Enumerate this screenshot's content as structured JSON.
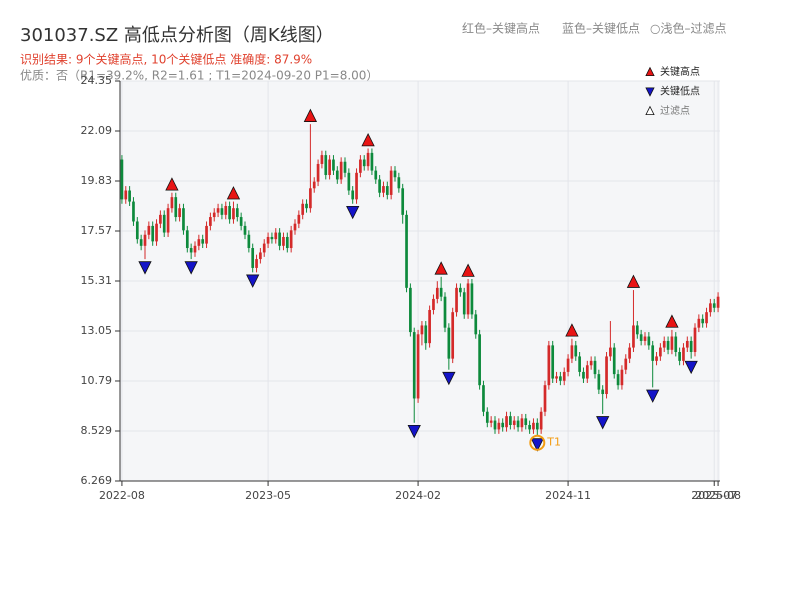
{
  "chart_data": {
    "type": "candlestick",
    "title": "301037.SZ 高低点分析图（周K线图）",
    "subtitle": "识别结果: 9个关键高点, 10个关键低点  准确度: 87.9%",
    "note": "优质：否（R1=39.2%, R2=1.61 ; T1=2024-09-20 P1=8.00）",
    "header_legend": [
      "红色–关键高点",
      "蓝色–关键低点",
      "○浅色–过滤点"
    ],
    "up_color": "#d42a2a",
    "down_color": "#0d8a3c",
    "ylim": [
      6.269,
      24.35
    ],
    "yticks": [
      6.269,
      8.529,
      10.79,
      13.05,
      15.31,
      17.57,
      19.83,
      22.09,
      24.35
    ],
    "grid": true,
    "legend_position": "upper right",
    "categories": [
      "2022-08",
      null,
      null,
      null,
      null,
      null,
      null,
      null,
      null,
      null,
      null,
      null,
      null,
      null,
      null,
      null,
      null,
      null,
      null,
      null,
      null,
      null,
      null,
      null,
      null,
      null,
      null,
      null,
      null,
      null,
      null,
      null,
      null,
      null,
      null,
      null,
      null,
      null,
      "2023-05",
      null,
      null,
      null,
      null,
      null,
      null,
      null,
      null,
      null,
      null,
      null,
      null,
      null,
      null,
      null,
      null,
      null,
      null,
      null,
      null,
      null,
      null,
      null,
      null,
      null,
      null,
      null,
      null,
      null,
      null,
      null,
      null,
      null,
      null,
      null,
      null,
      null,
      null,
      "2024-02",
      null,
      null,
      null,
      null,
      null,
      null,
      null,
      null,
      null,
      null,
      null,
      null,
      null,
      null,
      null,
      null,
      null,
      null,
      null,
      null,
      null,
      null,
      null,
      null,
      null,
      null,
      null,
      null,
      null,
      null,
      null,
      null,
      null,
      null,
      null,
      null,
      null,
      null,
      "2024-11",
      null,
      null,
      null,
      null,
      null,
      null,
      null,
      null,
      null,
      null,
      null,
      null,
      null,
      null,
      null,
      null,
      null,
      null,
      null,
      null,
      null,
      null,
      null,
      null,
      null,
      null,
      null,
      null,
      null,
      null,
      null,
      null,
      null,
      null,
      null,
      null,
      null,
      "2025-07",
      "2025-08"
    ],
    "open": [
      20.8,
      19.0,
      19.4,
      18.9,
      18.0,
      17.2,
      16.9,
      17.4,
      17.8,
      17.1,
      17.9,
      18.3,
      17.5,
      18.6,
      19.1,
      18.2,
      18.6,
      17.6,
      16.8,
      16.6,
      16.9,
      17.2,
      17.0,
      17.8,
      18.2,
      18.4,
      18.6,
      18.3,
      18.7,
      18.1,
      18.6,
      18.2,
      17.8,
      17.4,
      16.8,
      15.9,
      16.3,
      16.6,
      17.0,
      17.3,
      17.2,
      17.5,
      16.9,
      17.3,
      16.8,
      17.6,
      17.9,
      18.3,
      18.8,
      18.6,
      19.5,
      19.8,
      20.6,
      21.0,
      20.1,
      20.8,
      20.3,
      19.9,
      20.7,
      20.2,
      19.4,
      19.0,
      20.2,
      20.8,
      20.5,
      21.1,
      20.3,
      19.9,
      19.3,
      19.6,
      19.2,
      20.3,
      20.0,
      19.5,
      18.3,
      15.0,
      13.0,
      10.0,
      12.9,
      13.3,
      12.5,
      14.0,
      14.5,
      15.0,
      14.6,
      13.2,
      11.8,
      13.9,
      15.0,
      14.8,
      13.8,
      15.2,
      13.8,
      12.9,
      10.6,
      9.4,
      8.9,
      9.0,
      8.6,
      8.9,
      8.7,
      9.2,
      8.8,
      9.0,
      8.7,
      9.1,
      8.8,
      8.6,
      8.9,
      8.6,
      9.4,
      10.6,
      12.4,
      10.9,
      11.0,
      10.8,
      11.2,
      11.8,
      12.4,
      11.9,
      11.2,
      10.9,
      11.5,
      11.7,
      11.1,
      10.4,
      10.2,
      11.9,
      12.3,
      11.1,
      10.6,
      11.3,
      11.8,
      12.3,
      13.3,
      12.9,
      12.6,
      12.8,
      12.4,
      11.7,
      11.9,
      12.3,
      12.6,
      12.2,
      12.8,
      12.1,
      11.7,
      12.3,
      12.6,
      12.1,
      13.2,
      13.6,
      13.4,
      13.9,
      14.3,
      14.1
    ],
    "high": [
      21.0,
      19.6,
      19.6,
      19.1,
      18.2,
      17.4,
      17.6,
      18.0,
      18.0,
      18.1,
      18.5,
      18.5,
      18.8,
      19.3,
      19.3,
      18.8,
      18.8,
      17.8,
      17.0,
      17.1,
      17.4,
      17.4,
      18.0,
      18.4,
      18.6,
      18.8,
      18.8,
      18.9,
      18.9,
      18.9,
      18.8,
      18.4,
      18.0,
      17.6,
      17.0,
      16.5,
      16.8,
      17.2,
      17.5,
      17.5,
      17.7,
      17.7,
      17.5,
      17.5,
      17.8,
      18.1,
      18.5,
      19.0,
      19.0,
      22.4,
      20.0,
      20.8,
      21.2,
      21.2,
      21.0,
      21.0,
      20.5,
      20.9,
      20.9,
      20.4,
      19.6,
      20.4,
      21.0,
      21.0,
      21.3,
      21.3,
      20.5,
      20.1,
      19.8,
      19.8,
      20.5,
      20.5,
      20.2,
      19.7,
      18.5,
      15.2,
      13.2,
      13.1,
      13.5,
      13.5,
      14.2,
      14.7,
      15.3,
      15.5,
      14.8,
      13.4,
      14.1,
      15.2,
      15.2,
      15.0,
      15.4,
      15.4,
      14.0,
      13.1,
      10.8,
      9.6,
      9.2,
      9.2,
      9.1,
      9.1,
      9.4,
      9.4,
      9.2,
      9.2,
      9.3,
      9.3,
      9.0,
      9.1,
      9.1,
      9.6,
      10.8,
      12.6,
      12.6,
      11.2,
      11.2,
      11.4,
      12.0,
      12.7,
      12.6,
      12.1,
      11.4,
      11.7,
      11.9,
      11.9,
      11.3,
      10.6,
      12.1,
      13.5,
      12.5,
      11.3,
      11.5,
      12.0,
      12.5,
      14.9,
      13.5,
      13.1,
      13.0,
      13.0,
      12.6,
      12.1,
      12.5,
      12.8,
      12.8,
      13.1,
      13.0,
      12.3,
      12.5,
      12.8,
      12.8,
      13.4,
      13.8,
      13.8,
      14.1,
      14.5,
      14.5,
      14.8
    ],
    "low": [
      18.8,
      18.8,
      18.7,
      17.8,
      17.0,
      16.7,
      16.3,
      17.2,
      16.9,
      16.9,
      17.7,
      17.3,
      17.3,
      18.4,
      18.0,
      18.0,
      17.4,
      16.6,
      16.3,
      16.4,
      16.7,
      16.8,
      16.8,
      17.6,
      18.0,
      18.2,
      18.1,
      18.1,
      17.9,
      17.9,
      18.0,
      17.6,
      17.2,
      16.6,
      15.7,
      15.7,
      16.1,
      16.4,
      16.8,
      17.0,
      17.0,
      16.7,
      16.7,
      16.6,
      16.6,
      17.4,
      17.7,
      18.1,
      18.4,
      18.4,
      19.3,
      19.6,
      20.4,
      19.9,
      19.9,
      20.1,
      19.7,
      19.7,
      20.0,
      19.2,
      18.8,
      18.8,
      20.0,
      20.3,
      20.3,
      20.1,
      19.7,
      19.1,
      19.1,
      19.0,
      19.0,
      19.8,
      19.3,
      17.9,
      14.8,
      12.8,
      8.9,
      9.8,
      12.4,
      12.2,
      12.3,
      13.8,
      14.3,
      14.4,
      13.0,
      11.3,
      11.6,
      13.7,
      14.6,
      13.6,
      13.6,
      13.6,
      12.7,
      10.4,
      9.2,
      8.7,
      8.7,
      8.4,
      8.4,
      8.5,
      8.5,
      8.6,
      8.6,
      8.5,
      8.5,
      8.6,
      8.4,
      8.4,
      8.3,
      8.4,
      9.2,
      10.4,
      10.7,
      10.7,
      10.6,
      10.6,
      11.0,
      11.6,
      11.7,
      11.0,
      10.7,
      10.7,
      11.3,
      10.9,
      10.2,
      9.3,
      10.0,
      11.7,
      10.9,
      10.4,
      10.4,
      11.1,
      11.6,
      12.1,
      12.7,
      12.4,
      12.4,
      12.2,
      10.5,
      11.5,
      11.7,
      12.1,
      12.0,
      12.0,
      11.9,
      11.5,
      11.5,
      12.1,
      11.8,
      11.9,
      13.0,
      13.2,
      13.2,
      13.7,
      13.9,
      13.9
    ],
    "close": [
      19.0,
      19.4,
      18.9,
      18.0,
      17.2,
      16.9,
      17.4,
      17.8,
      17.1,
      17.9,
      18.3,
      17.5,
      18.6,
      19.1,
      18.2,
      18.6,
      17.6,
      16.8,
      16.6,
      16.9,
      17.2,
      17.0,
      17.8,
      18.2,
      18.4,
      18.6,
      18.3,
      18.7,
      18.1,
      18.6,
      18.2,
      17.8,
      17.4,
      16.8,
      15.9,
      16.3,
      16.6,
      17.0,
      17.3,
      17.2,
      17.5,
      16.9,
      17.3,
      16.8,
      17.6,
      17.9,
      18.3,
      18.8,
      18.6,
      19.5,
      19.8,
      20.6,
      21.0,
      20.1,
      20.8,
      20.3,
      19.9,
      20.7,
      20.2,
      19.4,
      19.0,
      20.2,
      20.8,
      20.5,
      21.1,
      20.3,
      19.9,
      19.3,
      19.6,
      19.2,
      20.3,
      20.0,
      19.5,
      18.3,
      15.0,
      13.0,
      10.0,
      12.9,
      13.3,
      12.5,
      14.0,
      14.5,
      15.0,
      14.6,
      13.2,
      11.8,
      13.9,
      15.0,
      14.8,
      13.8,
      15.2,
      13.8,
      12.9,
      10.6,
      9.4,
      8.9,
      9.0,
      8.6,
      8.9,
      8.7,
      9.2,
      8.8,
      9.0,
      8.7,
      9.1,
      8.8,
      8.6,
      8.9,
      8.6,
      9.4,
      10.6,
      12.4,
      10.9,
      11.0,
      10.8,
      11.2,
      11.8,
      12.4,
      11.9,
      11.2,
      10.9,
      11.5,
      11.7,
      11.1,
      10.4,
      10.2,
      11.9,
      12.3,
      11.1,
      10.6,
      11.3,
      11.8,
      12.3,
      13.3,
      12.9,
      12.6,
      12.8,
      12.4,
      11.7,
      11.9,
      12.3,
      12.6,
      12.2,
      12.8,
      12.1,
      11.7,
      12.3,
      12.6,
      12.1,
      13.2,
      13.6,
      13.4,
      13.9,
      14.3,
      14.1,
      14.6
    ],
    "series": [
      {
        "name": "关键高点",
        "color": "#e81414",
        "marker": "triangle-up",
        "values": [
          null,
          null,
          null,
          null,
          null,
          null,
          null,
          null,
          null,
          null,
          null,
          null,
          null,
          19.3,
          null,
          null,
          null,
          null,
          null,
          null,
          null,
          null,
          null,
          null,
          null,
          null,
          null,
          null,
          null,
          18.9,
          null,
          null,
          null,
          null,
          null,
          null,
          null,
          null,
          null,
          null,
          null,
          null,
          null,
          null,
          null,
          null,
          null,
          null,
          null,
          22.4,
          null,
          null,
          null,
          null,
          null,
          null,
          null,
          null,
          null,
          null,
          null,
          null,
          null,
          null,
          21.3,
          null,
          null,
          null,
          null,
          null,
          null,
          null,
          null,
          null,
          null,
          null,
          null,
          null,
          null,
          null,
          null,
          null,
          null,
          15.5,
          null,
          null,
          null,
          null,
          null,
          null,
          15.4,
          null,
          null,
          null,
          null,
          null,
          null,
          null,
          null,
          null,
          null,
          null,
          null,
          null,
          null,
          null,
          null,
          null,
          null,
          null,
          null,
          null,
          null,
          null,
          null,
          null,
          null,
          12.7,
          null,
          null,
          null,
          null,
          null,
          null,
          null,
          null,
          null,
          null,
          null,
          null,
          null,
          null,
          null,
          14.9,
          null,
          null,
          null,
          null,
          null,
          null,
          null,
          null,
          null,
          13.1,
          null,
          null,
          null,
          null,
          null,
          null,
          null,
          null,
          null,
          null,
          null,
          null
        ]
      },
      {
        "name": "关键低点",
        "color": "#1414c8",
        "marker": "triangle-down",
        "values": [
          null,
          null,
          null,
          null,
          null,
          null,
          16.3,
          null,
          null,
          null,
          null,
          null,
          null,
          null,
          null,
          null,
          null,
          null,
          16.3,
          null,
          null,
          null,
          null,
          null,
          null,
          null,
          null,
          null,
          null,
          null,
          null,
          null,
          null,
          null,
          15.7,
          null,
          null,
          null,
          null,
          null,
          null,
          null,
          null,
          null,
          null,
          null,
          null,
          null,
          null,
          null,
          null,
          null,
          null,
          null,
          null,
          null,
          null,
          null,
          null,
          null,
          18.8,
          null,
          null,
          null,
          null,
          null,
          null,
          null,
          null,
          null,
          null,
          null,
          null,
          null,
          null,
          null,
          8.9,
          null,
          null,
          null,
          null,
          null,
          null,
          null,
          null,
          11.3,
          null,
          null,
          null,
          null,
          null,
          null,
          null,
          null,
          null,
          null,
          null,
          null,
          null,
          null,
          null,
          null,
          null,
          null,
          null,
          null,
          null,
          null,
          8.3,
          null,
          null,
          null,
          null,
          null,
          null,
          null,
          null,
          null,
          null,
          null,
          null,
          null,
          null,
          null,
          null,
          9.3,
          null,
          null,
          null,
          null,
          null,
          null,
          null,
          null,
          null,
          null,
          null,
          null,
          10.5,
          null,
          null,
          null,
          null,
          null,
          null,
          null,
          null,
          null,
          11.8,
          null,
          null,
          null,
          null,
          null,
          null,
          null
        ]
      },
      {
        "name": "过滤点",
        "color": "#ffffff",
        "marker": "triangle-up"
      }
    ],
    "annotation": {
      "text": "T1",
      "color": "#f39c12",
      "values": [
        null,
        null,
        null,
        null,
        null,
        null,
        null,
        null,
        null,
        null,
        null,
        null,
        null,
        null,
        null,
        null,
        null,
        null,
        null,
        null,
        null,
        null,
        null,
        null,
        null,
        null,
        null,
        null,
        null,
        null,
        null,
        null,
        null,
        null,
        null,
        null,
        null,
        null,
        null,
        null,
        null,
        null,
        null,
        null,
        null,
        null,
        null,
        null,
        null,
        null,
        null,
        null,
        null,
        null,
        null,
        null,
        null,
        null,
        null,
        null,
        null,
        null,
        null,
        null,
        null,
        null,
        null,
        null,
        null,
        null,
        null,
        null,
        null,
        null,
        null,
        null,
        null,
        null,
        null,
        null,
        null,
        null,
        null,
        null,
        null,
        null,
        null,
        null,
        null,
        null,
        null,
        null,
        null,
        null,
        null,
        null,
        null,
        null,
        null,
        null,
        null,
        null,
        null,
        null,
        null,
        null,
        null,
        null,
        8.0,
        null,
        null,
        null,
        null,
        null,
        null,
        null,
        null,
        null,
        null,
        null,
        null,
        null,
        null,
        null,
        null,
        null,
        null,
        null,
        null,
        null,
        null,
        null,
        null,
        null,
        null,
        null,
        null,
        null,
        null,
        null,
        null,
        null,
        null,
        null,
        null,
        null,
        null,
        null,
        null,
        null,
        null,
        null,
        null,
        null,
        null,
        null
      ]
    }
  }
}
